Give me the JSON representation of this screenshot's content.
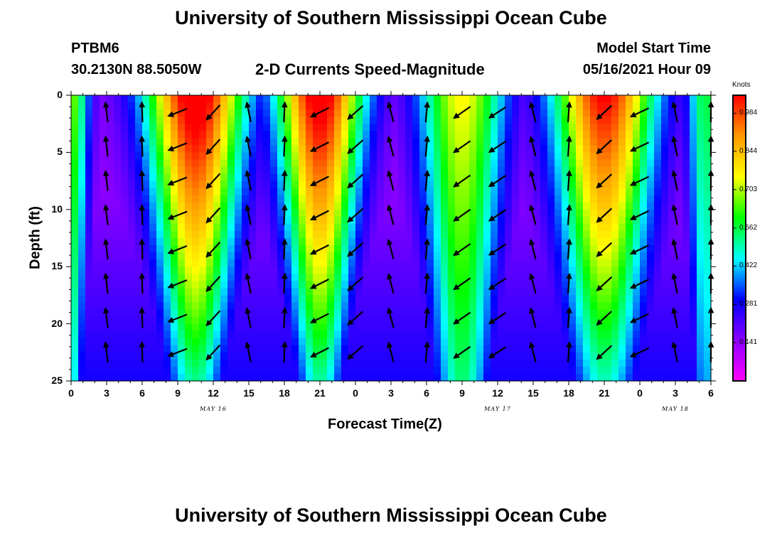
{
  "title_top": "University of Southern Mississippi Ocean Cube",
  "title_bottom": "University of Southern Mississippi Ocean Cube",
  "station": {
    "id": "PTBM6",
    "coords": "30.2130N  88.5050W"
  },
  "model": {
    "label": "Model Start Time",
    "value": "05/16/2021 Hour 09"
  },
  "chart_data": {
    "type": "heatmap",
    "title": "2-D Currents Speed-Magnitude",
    "xlabel": "Forecast Time(Z)",
    "ylabel": "Depth (ft)",
    "x_tick_labels": [
      "0",
      "3",
      "6",
      "9",
      "12",
      "15",
      "18",
      "21",
      "0",
      "3",
      "6",
      "9",
      "12",
      "15",
      "18",
      "21",
      "0",
      "3",
      "6"
    ],
    "x_range_hours": [
      0,
      54
    ],
    "y_tick_labels": [
      "0",
      "5",
      "10",
      "15",
      "20",
      "25"
    ],
    "ylim": [
      0,
      25
    ],
    "y_inverted": true,
    "date_labels": [
      {
        "text": "MAY  16",
        "hour": 12
      },
      {
        "text": "MAY  17",
        "hour": 36
      },
      {
        "text": "MAY  18",
        "hour": 51
      }
    ],
    "colorbar": {
      "label": "Knots",
      "ticks": [
        "0.984",
        "0.844",
        "0.703",
        "0.562",
        "0.422",
        "0.281",
        "0.141"
      ],
      "tick_values": [
        0.984,
        0.844,
        0.703,
        0.562,
        0.422,
        0.281,
        0.141
      ],
      "range": [
        0,
        1.05
      ],
      "colors": [
        "#ff00ff",
        "#8a00ff",
        "#0000ff",
        "#00ffff",
        "#00ff00",
        "#ffff00",
        "#ff9900",
        "#ff0000"
      ]
    },
    "speed_field": {
      "description_peaks": [
        {
          "hour": 10.5,
          "depth_surface_knots": 0.98
        },
        {
          "hour": 21.0,
          "depth_surface_knots": 0.96
        },
        {
          "hour": 45.0,
          "depth_surface_knots": 0.9
        }
      ],
      "minima_hours": [
        2.5,
        15.0,
        27.5,
        38.0,
        50.5
      ]
    }
  }
}
